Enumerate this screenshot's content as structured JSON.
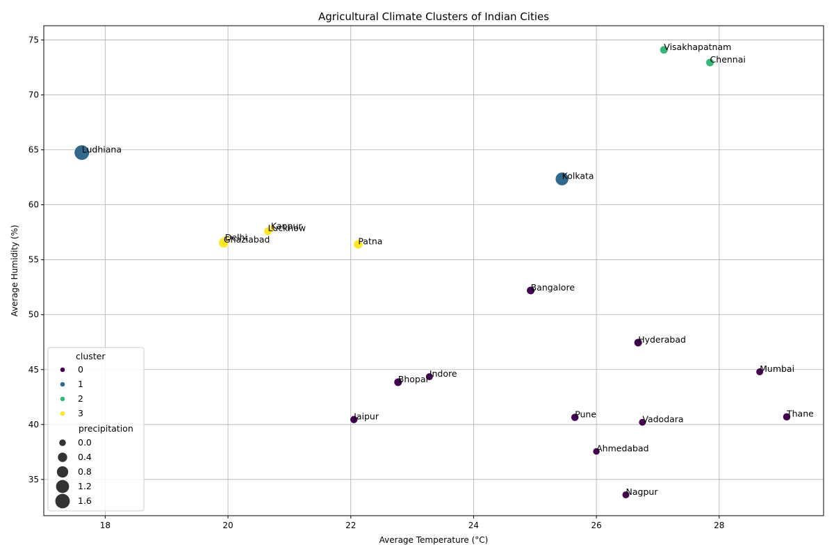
{
  "chart_data": {
    "type": "scatter",
    "title": "Agricultural Climate Clusters of Indian Cities",
    "xlabel": "Average Temperature (°C)",
    "ylabel": "Average Humidity (%)",
    "xlim": [
      17.0,
      29.7
    ],
    "ylim": [
      31.7,
      76.3
    ],
    "xticks": [
      18,
      20,
      22,
      24,
      26,
      28
    ],
    "yticks": [
      35,
      40,
      45,
      50,
      55,
      60,
      65,
      70,
      75
    ],
    "grid": true,
    "legend_placement": "lower-left",
    "cluster_colors": {
      "0": "#440154",
      "1": "#31688e",
      "2": "#35b779",
      "3": "#fde725"
    },
    "legend": {
      "cluster_title": "cluster",
      "clusters": [
        "0",
        "1",
        "2",
        "3"
      ],
      "size_title": "precipitation",
      "sizes": [
        "0.0",
        "0.4",
        "0.8",
        "1.2",
        "1.6"
      ]
    },
    "points": [
      {
        "city": "Visakhapatnam",
        "temp": 27.1,
        "humidity": 74.1,
        "cluster": 2,
        "precipitation": 0.2
      },
      {
        "city": "Chennai",
        "temp": 27.85,
        "humidity": 72.95,
        "cluster": 2,
        "precipitation": 0.2
      },
      {
        "city": "Ludhiana",
        "temp": 17.62,
        "humidity": 64.75,
        "cluster": 1,
        "precipitation": 1.75
      },
      {
        "city": "Kolkata",
        "temp": 25.44,
        "humidity": 62.35,
        "cluster": 1,
        "precipitation": 1.25
      },
      {
        "city": "Kanpur",
        "temp": 20.7,
        "humidity": 57.8,
        "cluster": 3,
        "precipitation": 0.05
      },
      {
        "city": "Lucknow",
        "temp": 20.65,
        "humidity": 57.6,
        "cluster": 3,
        "precipitation": 0.2
      },
      {
        "city": "Delhi",
        "temp": 19.95,
        "humidity": 56.75,
        "cluster": 3,
        "precipitation": 0.3
      },
      {
        "city": "Ghaziabad",
        "temp": 19.93,
        "humidity": 56.55,
        "cluster": 3,
        "precipitation": 0.55
      },
      {
        "city": "Patna",
        "temp": 22.12,
        "humidity": 56.4,
        "cluster": 3,
        "precipitation": 0.35
      },
      {
        "city": "Bangalore",
        "temp": 24.93,
        "humidity": 52.2,
        "cluster": 0,
        "precipitation": 0.2
      },
      {
        "city": "Hyderabad",
        "temp": 26.68,
        "humidity": 47.45,
        "cluster": 0,
        "precipitation": 0.2
      },
      {
        "city": "Mumbai",
        "temp": 28.66,
        "humidity": 44.8,
        "cluster": 0,
        "precipitation": 0.1
      },
      {
        "city": "Indore",
        "temp": 23.28,
        "humidity": 44.35,
        "cluster": 0,
        "precipitation": 0.1
      },
      {
        "city": "Bhopal",
        "temp": 22.77,
        "humidity": 43.85,
        "cluster": 0,
        "precipitation": 0.2
      },
      {
        "city": "Thane",
        "temp": 29.1,
        "humidity": 40.7,
        "cluster": 0,
        "precipitation": 0.15
      },
      {
        "city": "Pune",
        "temp": 25.65,
        "humidity": 40.65,
        "cluster": 0,
        "precipitation": 0.15
      },
      {
        "city": "Jaipur",
        "temp": 22.05,
        "humidity": 40.45,
        "cluster": 0,
        "precipitation": 0.15
      },
      {
        "city": "Vadodara",
        "temp": 26.75,
        "humidity": 40.2,
        "cluster": 0,
        "precipitation": 0.1
      },
      {
        "city": "Ahmedabad",
        "temp": 26.0,
        "humidity": 37.55,
        "cluster": 0,
        "precipitation": 0.05
      },
      {
        "city": "Nagpur",
        "temp": 26.48,
        "humidity": 33.6,
        "cluster": 0,
        "precipitation": 0.1
      }
    ]
  }
}
